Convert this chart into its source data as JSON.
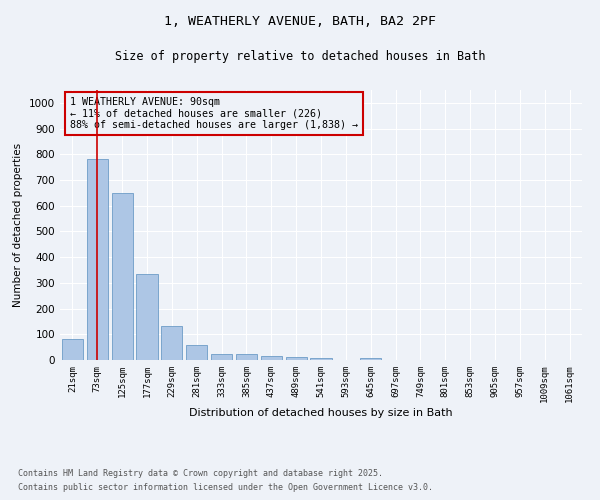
{
  "title1": "1, WEATHERLY AVENUE, BATH, BA2 2PF",
  "title2": "Size of property relative to detached houses in Bath",
  "xlabel": "Distribution of detached houses by size in Bath",
  "ylabel": "Number of detached properties",
  "bar_labels": [
    "21sqm",
    "73sqm",
    "125sqm",
    "177sqm",
    "229sqm",
    "281sqm",
    "333sqm",
    "385sqm",
    "437sqm",
    "489sqm",
    "541sqm",
    "593sqm",
    "645sqm",
    "697sqm",
    "749sqm",
    "801sqm",
    "853sqm",
    "905sqm",
    "957sqm",
    "1009sqm",
    "1061sqm"
  ],
  "bar_values": [
    82,
    783,
    648,
    333,
    133,
    60,
    25,
    23,
    17,
    10,
    6,
    0,
    8,
    0,
    0,
    0,
    0,
    0,
    0,
    0,
    0
  ],
  "bar_color": "#adc6e5",
  "bar_edge_color": "#5a8fc0",
  "vline_x": 1,
  "vline_color": "#cc0000",
  "ylim": [
    0,
    1050
  ],
  "yticks": [
    0,
    100,
    200,
    300,
    400,
    500,
    600,
    700,
    800,
    900,
    1000
  ],
  "annotation_title": "1 WEATHERLY AVENUE: 90sqm",
  "annotation_line1": "← 11% of detached houses are smaller (226)",
  "annotation_line2": "88% of semi-detached houses are larger (1,838) →",
  "annotation_box_color": "#cc0000",
  "footnote1": "Contains HM Land Registry data © Crown copyright and database right 2025.",
  "footnote2": "Contains public sector information licensed under the Open Government Licence v3.0.",
  "background_color": "#eef2f8",
  "grid_color": "#ffffff"
}
